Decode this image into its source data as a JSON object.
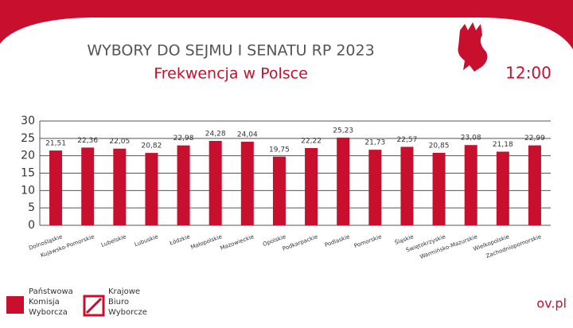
{
  "chart_data": {
    "type": "bar",
    "title": "WYBORY DO SEJMU I SENATU RP 2023",
    "subtitle": "Frekwencja w Polsce",
    "time": "12:00",
    "categories": [
      "Dolnośląskie",
      "Kujawsko-Pomorskie",
      "Lubelskie",
      "Lubuskie",
      "Łódzkie",
      "Małopolskie",
      "Mazowieckie",
      "Opolskie",
      "Podkarpackie",
      "Podlaskie",
      "Pomorskie",
      "Śląskie",
      "Świętokrzyskie",
      "Warmińsko-Mazurskie",
      "Wielkopolskie",
      "Zachodniopomorskie"
    ],
    "values": [
      21.51,
      22.36,
      22.05,
      20.82,
      22.98,
      24.28,
      24.04,
      19.75,
      22.22,
      25.23,
      21.73,
      22.57,
      20.85,
      23.08,
      21.18,
      22.99
    ],
    "value_labels": [
      "21,51",
      "22,36",
      "22,05",
      "20,82",
      "22,98",
      "24,28",
      "24,04",
      "19,75",
      "22,22",
      "25,23",
      "21,73",
      "22,57",
      "20,85",
      "23,08",
      "21,18",
      "22,99"
    ],
    "color": "#c8102e",
    "ylim": [
      0,
      30
    ],
    "yticks": [
      0,
      5,
      10,
      15,
      20,
      25,
      30
    ],
    "grid": true
  },
  "footer": {
    "pkw": [
      "Państwowa",
      "Komisja",
      "Wyborcza"
    ],
    "kbw": [
      "Krajowe",
      "Biuro",
      "Wyborcze"
    ],
    "url": "ov.pl"
  }
}
